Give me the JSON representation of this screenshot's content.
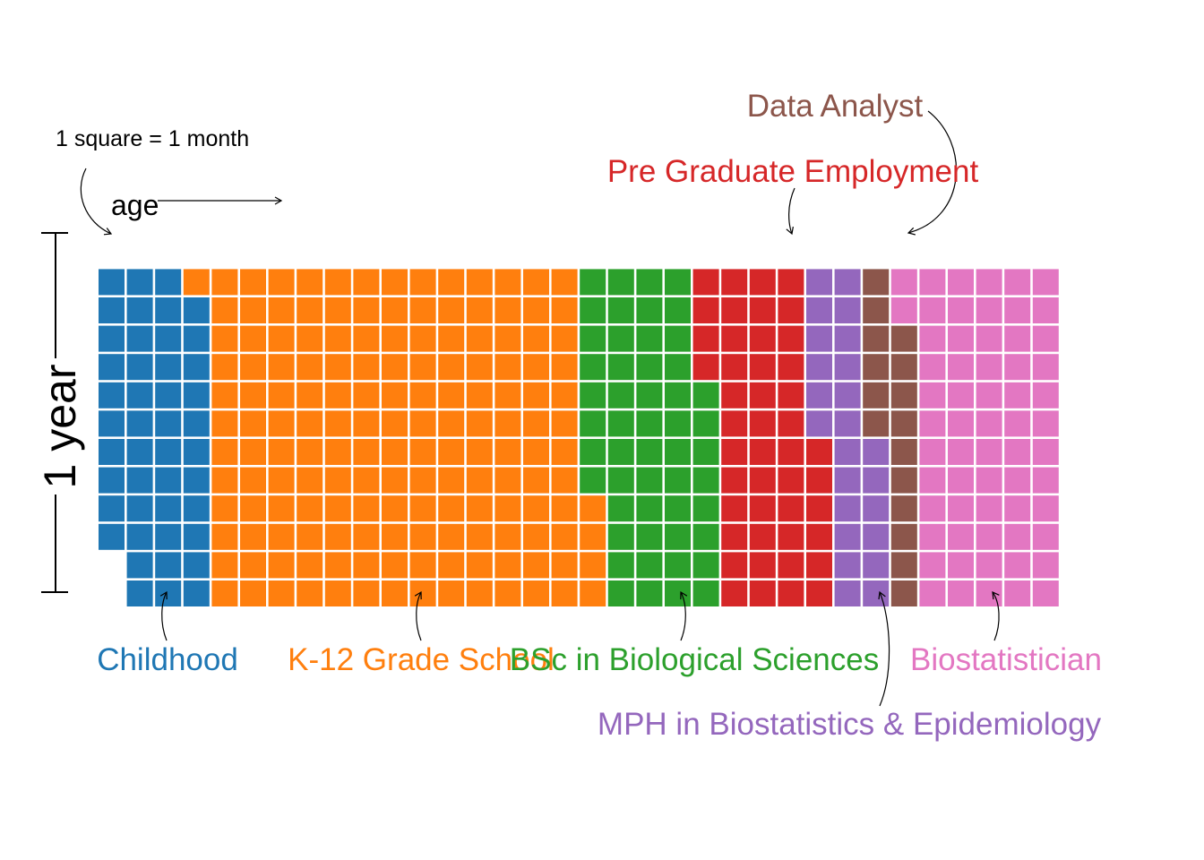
{
  "chart_data": {
    "type": "waffle",
    "title": "",
    "unit_note": "1 square = 1 month",
    "x_axis_label": "age",
    "y_axis_label": "1 year",
    "rows_per_column": 12,
    "months_total": 406,
    "series": [
      {
        "name": "Childhood",
        "months": 45,
        "color": "#1f77b4"
      },
      {
        "name": "K-12 Grade School",
        "months": 161,
        "color": "#ff7f0e"
      },
      {
        "name": "BSc in Biological Sciences",
        "months": 52,
        "color": "#2ca02c"
      },
      {
        "name": "Pre Graduate Employment",
        "months": 46,
        "color": "#d62728"
      },
      {
        "name": "MPH in Biostatistics & Epidemiology",
        "months": 24,
        "color": "#9467bd"
      },
      {
        "name": "Data Analyst",
        "months": 16,
        "color": "#8c564b"
      },
      {
        "name": "Biostatistician",
        "months": 62,
        "color": "#e377c2"
      }
    ]
  }
}
